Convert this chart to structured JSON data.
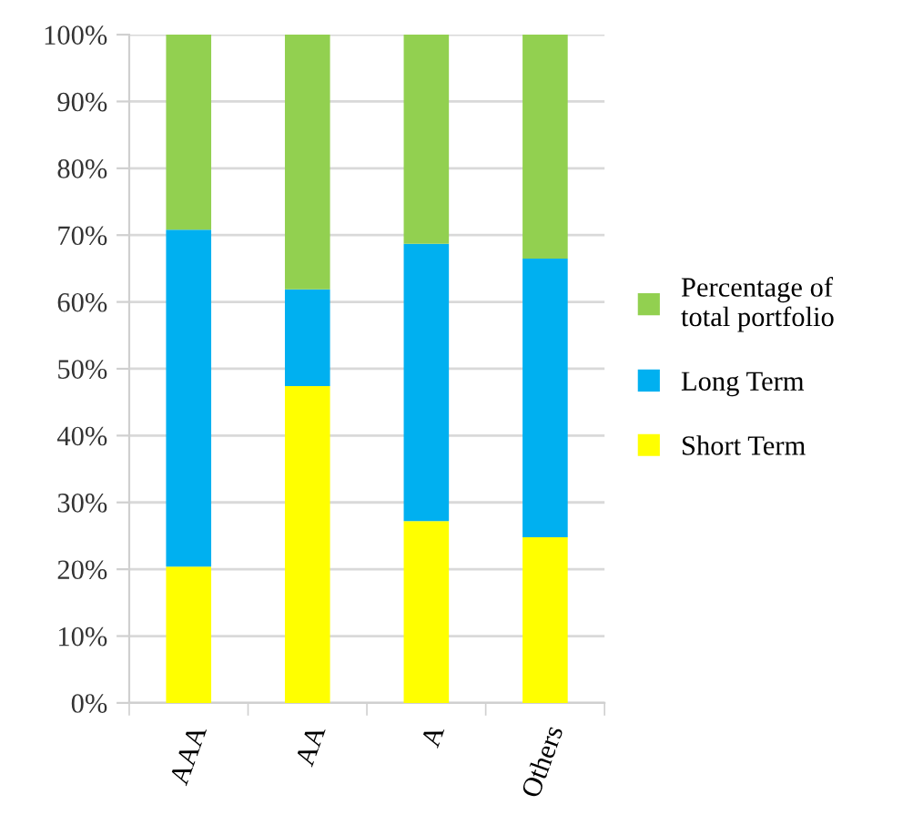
{
  "chart_data": {
    "type": "bar",
    "stacked": true,
    "categories": [
      "AAA",
      "AA",
      "A",
      "Others"
    ],
    "series": [
      {
        "name": "Short Term",
        "color": "#ffff00",
        "values": [
          20.4,
          47.4,
          27.2,
          24.8
        ]
      },
      {
        "name": "Long Term",
        "color": "#00b0f0",
        "values": [
          50.4,
          14.5,
          41.5,
          41.7
        ]
      },
      {
        "name": "Percentage of total portfolio",
        "color": "#92d050",
        "values": [
          29.2,
          38.1,
          31.3,
          33.5
        ]
      }
    ],
    "ylim": [
      0,
      100
    ],
    "yticks": [
      {
        "value": 0,
        "label": "0%"
      },
      {
        "value": 10,
        "label": "10%"
      },
      {
        "value": 20,
        "label": "20%"
      },
      {
        "value": 30,
        "label": "30%"
      },
      {
        "value": 40,
        "label": "40%"
      },
      {
        "value": 50,
        "label": "50%"
      },
      {
        "value": 60,
        "label": "60%"
      },
      {
        "value": 70,
        "label": "70%"
      },
      {
        "value": 80,
        "label": "80%"
      },
      {
        "value": 90,
        "label": "90%"
      },
      {
        "value": 100,
        "label": "100%"
      }
    ],
    "grid": "y",
    "legend": "right"
  }
}
